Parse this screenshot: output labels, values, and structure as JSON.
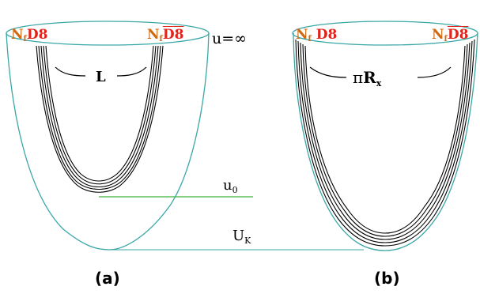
{
  "panel_a": {
    "left_label": {
      "count": "N",
      "count_sub": "f",
      "brane": "D8"
    },
    "right_label": {
      "count": "N",
      "count_sub": "f",
      "brane": "D8"
    },
    "separation_label": "L",
    "u0_label": {
      "base": "u",
      "sub": "0"
    },
    "uk_label": {
      "base": "U",
      "sub": "K"
    },
    "caption": "(a)"
  },
  "panel_b": {
    "left_label": {
      "count": "N",
      "count_sub": "f",
      "brane": "D8"
    },
    "right_label": {
      "count": "N",
      "count_sub": "f",
      "brane": "D8"
    },
    "separation_label": {
      "prefix": "π",
      "main": "R",
      "sub": "x"
    },
    "caption": "(b)"
  },
  "boundary_label": "u=∞",
  "colors": {
    "cigar": "#3aa7a7",
    "u0_line": "#3fb53f",
    "uk_line": "#3aa7a7",
    "brane_text": "#e0231b",
    "nf_text": "#d06a12",
    "strands": "#000000"
  }
}
